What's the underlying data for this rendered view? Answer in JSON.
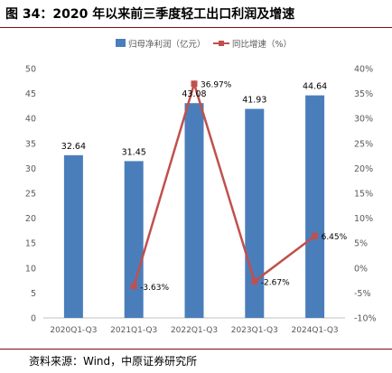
{
  "figure": {
    "title": "图 34：2020 年以来前三季度轻工出口利润及增速",
    "source": "资料来源：Wind，中原证券研究所"
  },
  "chart_data": {
    "type": "bar+line",
    "categories": [
      "2020Q1-Q3",
      "2021Q1-Q3",
      "2022Q1-Q3",
      "2023Q1-Q3",
      "2024Q1-Q3"
    ],
    "series": [
      {
        "name": "归母净利润（亿元）",
        "type": "bar",
        "axis": "left",
        "color": "#4a7ebb",
        "values": [
          32.64,
          31.45,
          43.08,
          41.93,
          44.64
        ],
        "labels": [
          "32.64",
          "31.45",
          "43.08",
          "41.93",
          "44.64"
        ]
      },
      {
        "name": "同比增速（%）",
        "type": "line",
        "axis": "right",
        "color": "#c0504d",
        "values": [
          null,
          -3.63,
          36.97,
          -2.67,
          6.45
        ],
        "labels": [
          "",
          "-3.63%",
          "36.97%",
          "-2.67%",
          "6.45%"
        ]
      }
    ],
    "y_left": {
      "min": 0,
      "max": 50,
      "ticks": [
        "0",
        "5",
        "10",
        "15",
        "20",
        "25",
        "30",
        "35",
        "40",
        "45",
        "50"
      ]
    },
    "y_right": {
      "min": -10,
      "max": 40,
      "ticks": [
        "-10%",
        "-5%",
        "0%",
        "5%",
        "10%",
        "15%",
        "20%",
        "25%",
        "30%",
        "35%",
        "40%"
      ]
    },
    "legend_position": "top-center",
    "grid": false
  }
}
